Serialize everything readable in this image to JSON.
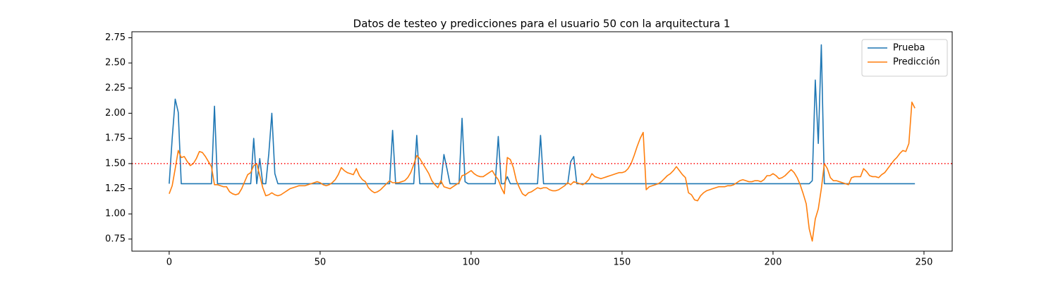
{
  "chart_data": {
    "type": "line",
    "title": "Datos de testeo y predicciones para el usuario 50 con la arquitectura 1",
    "x": [
      0,
      1,
      2,
      3,
      4,
      5,
      6,
      7,
      8,
      9,
      10,
      11,
      12,
      13,
      14,
      15,
      16,
      17,
      18,
      19,
      20,
      21,
      22,
      23,
      24,
      25,
      26,
      27,
      28,
      29,
      30,
      31,
      32,
      33,
      34,
      35,
      36,
      37,
      38,
      39,
      40,
      41,
      42,
      43,
      44,
      45,
      46,
      47,
      48,
      49,
      50,
      51,
      52,
      53,
      54,
      55,
      56,
      57,
      58,
      59,
      60,
      61,
      62,
      63,
      64,
      65,
      66,
      67,
      68,
      69,
      70,
      71,
      72,
      73,
      74,
      75,
      76,
      77,
      78,
      79,
      80,
      81,
      82,
      83,
      84,
      85,
      86,
      87,
      88,
      89,
      90,
      91,
      92,
      93,
      94,
      95,
      96,
      97,
      98,
      99,
      100,
      101,
      102,
      103,
      104,
      105,
      106,
      107,
      108,
      109,
      110,
      111,
      112,
      113,
      114,
      115,
      116,
      117,
      118,
      119,
      120,
      121,
      122,
      123,
      124,
      125,
      126,
      127,
      128,
      129,
      130,
      131,
      132,
      133,
      134,
      135,
      136,
      137,
      138,
      139,
      140,
      141,
      142,
      143,
      144,
      145,
      146,
      147,
      148,
      149,
      150,
      151,
      152,
      153,
      154,
      155,
      156,
      157,
      158,
      159,
      160,
      161,
      162,
      163,
      164,
      165,
      166,
      167,
      168,
      169,
      170,
      171,
      172,
      173,
      174,
      175,
      176,
      177,
      178,
      179,
      180,
      181,
      182,
      183,
      184,
      185,
      186,
      187,
      188,
      189,
      190,
      191,
      192,
      193,
      194,
      195,
      196,
      197,
      198,
      199,
      200,
      201,
      202,
      203,
      204,
      205,
      206,
      207,
      208,
      209,
      210,
      211,
      212,
      213,
      214,
      215,
      216,
      217,
      218,
      219,
      220,
      221,
      222,
      223,
      224,
      225,
      226,
      227,
      228,
      229,
      230,
      231,
      232,
      233,
      234,
      235,
      236,
      237,
      238,
      239,
      240,
      241,
      242,
      243,
      244,
      245,
      246,
      247
    ],
    "series": [
      {
        "name": "Prueba",
        "color": "#1f77b4",
        "values": [
          1.3,
          1.75,
          2.14,
          2.01,
          1.3,
          1.3,
          1.3,
          1.3,
          1.3,
          1.3,
          1.3,
          1.3,
          1.3,
          1.3,
          1.3,
          2.07,
          1.3,
          1.3,
          1.3,
          1.3,
          1.3,
          1.3,
          1.3,
          1.3,
          1.3,
          1.3,
          1.3,
          1.3,
          1.75,
          1.3,
          1.55,
          1.3,
          1.3,
          1.6,
          2.0,
          1.4,
          1.3,
          1.3,
          1.3,
          1.3,
          1.3,
          1.3,
          1.3,
          1.3,
          1.3,
          1.3,
          1.3,
          1.3,
          1.3,
          1.3,
          1.3,
          1.3,
          1.3,
          1.3,
          1.3,
          1.3,
          1.3,
          1.3,
          1.3,
          1.3,
          1.3,
          1.3,
          1.3,
          1.3,
          1.3,
          1.3,
          1.3,
          1.3,
          1.3,
          1.3,
          1.3,
          1.3,
          1.3,
          1.3,
          1.83,
          1.3,
          1.3,
          1.3,
          1.3,
          1.3,
          1.3,
          1.3,
          1.78,
          1.3,
          1.3,
          1.3,
          1.3,
          1.3,
          1.3,
          1.3,
          1.3,
          1.59,
          1.45,
          1.3,
          1.3,
          1.3,
          1.3,
          1.95,
          1.32,
          1.3,
          1.3,
          1.3,
          1.3,
          1.3,
          1.3,
          1.3,
          1.3,
          1.3,
          1.3,
          1.77,
          1.3,
          1.3,
          1.37,
          1.3,
          1.3,
          1.3,
          1.3,
          1.3,
          1.3,
          1.3,
          1.3,
          1.3,
          1.3,
          1.78,
          1.3,
          1.3,
          1.3,
          1.3,
          1.3,
          1.3,
          1.3,
          1.3,
          1.3,
          1.52,
          1.57,
          1.3,
          1.3,
          1.3,
          1.3,
          1.3,
          1.3,
          1.3,
          1.3,
          1.3,
          1.3,
          1.3,
          1.3,
          1.3,
          1.3,
          1.3,
          1.3,
          1.3,
          1.3,
          1.3,
          1.3,
          1.3,
          1.3,
          1.3,
          1.3,
          1.3,
          1.3,
          1.3,
          1.3,
          1.3,
          1.3,
          1.3,
          1.3,
          1.3,
          1.3,
          1.3,
          1.3,
          1.3,
          1.3,
          1.3,
          1.3,
          1.3,
          1.3,
          1.3,
          1.3,
          1.3,
          1.3,
          1.3,
          1.3,
          1.3,
          1.3,
          1.3,
          1.3,
          1.3,
          1.3,
          1.3,
          1.3,
          1.3,
          1.3,
          1.3,
          1.3,
          1.3,
          1.3,
          1.3,
          1.3,
          1.3,
          1.3,
          1.3,
          1.3,
          1.3,
          1.3,
          1.3,
          1.3,
          1.3,
          1.3,
          1.3,
          1.3,
          1.3,
          1.3,
          1.33,
          2.33,
          1.7,
          2.68,
          1.3,
          1.3,
          1.3,
          1.3,
          1.3,
          1.3,
          1.3,
          1.3,
          1.3,
          1.3,
          1.3,
          1.3,
          1.3,
          1.3,
          1.3,
          1.3,
          1.3,
          1.3,
          1.3,
          1.3,
          1.3,
          1.3,
          1.3,
          1.3,
          1.3,
          1.3,
          1.3,
          1.3,
          1.3,
          1.3,
          1.3
        ]
      },
      {
        "name": "Predicción",
        "color": "#ff7f0e",
        "values": [
          1.2,
          1.28,
          1.45,
          1.63,
          1.56,
          1.57,
          1.52,
          1.48,
          1.5,
          1.55,
          1.62,
          1.61,
          1.57,
          1.52,
          1.47,
          1.29,
          1.29,
          1.28,
          1.27,
          1.27,
          1.22,
          1.2,
          1.19,
          1.2,
          1.25,
          1.32,
          1.39,
          1.41,
          1.48,
          1.5,
          1.38,
          1.26,
          1.18,
          1.19,
          1.21,
          1.19,
          1.18,
          1.19,
          1.21,
          1.23,
          1.25,
          1.26,
          1.27,
          1.28,
          1.28,
          1.28,
          1.29,
          1.3,
          1.31,
          1.32,
          1.31,
          1.29,
          1.28,
          1.29,
          1.31,
          1.34,
          1.39,
          1.46,
          1.43,
          1.41,
          1.4,
          1.39,
          1.45,
          1.38,
          1.34,
          1.32,
          1.26,
          1.23,
          1.21,
          1.22,
          1.24,
          1.27,
          1.3,
          1.33,
          1.31,
          1.31,
          1.31,
          1.32,
          1.33,
          1.36,
          1.41,
          1.49,
          1.58,
          1.55,
          1.5,
          1.45,
          1.4,
          1.33,
          1.29,
          1.26,
          1.33,
          1.27,
          1.26,
          1.25,
          1.27,
          1.29,
          1.31,
          1.38,
          1.39,
          1.41,
          1.43,
          1.4,
          1.38,
          1.37,
          1.37,
          1.39,
          1.41,
          1.43,
          1.38,
          1.34,
          1.26,
          1.2,
          1.56,
          1.54,
          1.46,
          1.33,
          1.26,
          1.2,
          1.18,
          1.21,
          1.22,
          1.24,
          1.26,
          1.25,
          1.26,
          1.26,
          1.24,
          1.23,
          1.23,
          1.24,
          1.26,
          1.28,
          1.31,
          1.29,
          1.32,
          1.31,
          1.3,
          1.29,
          1.31,
          1.34,
          1.4,
          1.37,
          1.36,
          1.35,
          1.36,
          1.37,
          1.38,
          1.39,
          1.4,
          1.41,
          1.41,
          1.42,
          1.45,
          1.5,
          1.58,
          1.67,
          1.75,
          1.81,
          1.24,
          1.27,
          1.28,
          1.29,
          1.3,
          1.32,
          1.35,
          1.38,
          1.4,
          1.43,
          1.47,
          1.43,
          1.39,
          1.36,
          1.21,
          1.19,
          1.14,
          1.13,
          1.18,
          1.21,
          1.23,
          1.24,
          1.25,
          1.26,
          1.27,
          1.27,
          1.27,
          1.28,
          1.28,
          1.29,
          1.31,
          1.33,
          1.34,
          1.33,
          1.32,
          1.32,
          1.33,
          1.33,
          1.32,
          1.34,
          1.38,
          1.38,
          1.4,
          1.38,
          1.35,
          1.36,
          1.38,
          1.41,
          1.44,
          1.41,
          1.36,
          1.29,
          1.2,
          1.1,
          0.85,
          0.73,
          0.95,
          1.05,
          1.25,
          1.5,
          1.45,
          1.36,
          1.33,
          1.33,
          1.32,
          1.31,
          1.3,
          1.29,
          1.36,
          1.37,
          1.37,
          1.37,
          1.45,
          1.42,
          1.38,
          1.37,
          1.37,
          1.36,
          1.39,
          1.41,
          1.45,
          1.49,
          1.53,
          1.56,
          1.6,
          1.63,
          1.62,
          1.7,
          2.11,
          2.05
        ]
      }
    ],
    "xlim": [
      -12.35,
      259.35
    ],
    "xticks": [
      0,
      50,
      100,
      150,
      200,
      250
    ],
    "ylim": [
      0.63,
      2.81
    ],
    "yticks": [
      0.75,
      {
        "value": 1,
        "label": "1.00"
      },
      1.25,
      {
        "value": 1.5,
        "label": "1.50"
      },
      1.75,
      {
        "value": 2,
        "label": "2.00"
      },
      2.25,
      {
        "value": 2.5,
        "label": "2.50"
      },
      2.75
    ],
    "hline": 1.5,
    "hline_color": "red",
    "legend": "upper right"
  }
}
